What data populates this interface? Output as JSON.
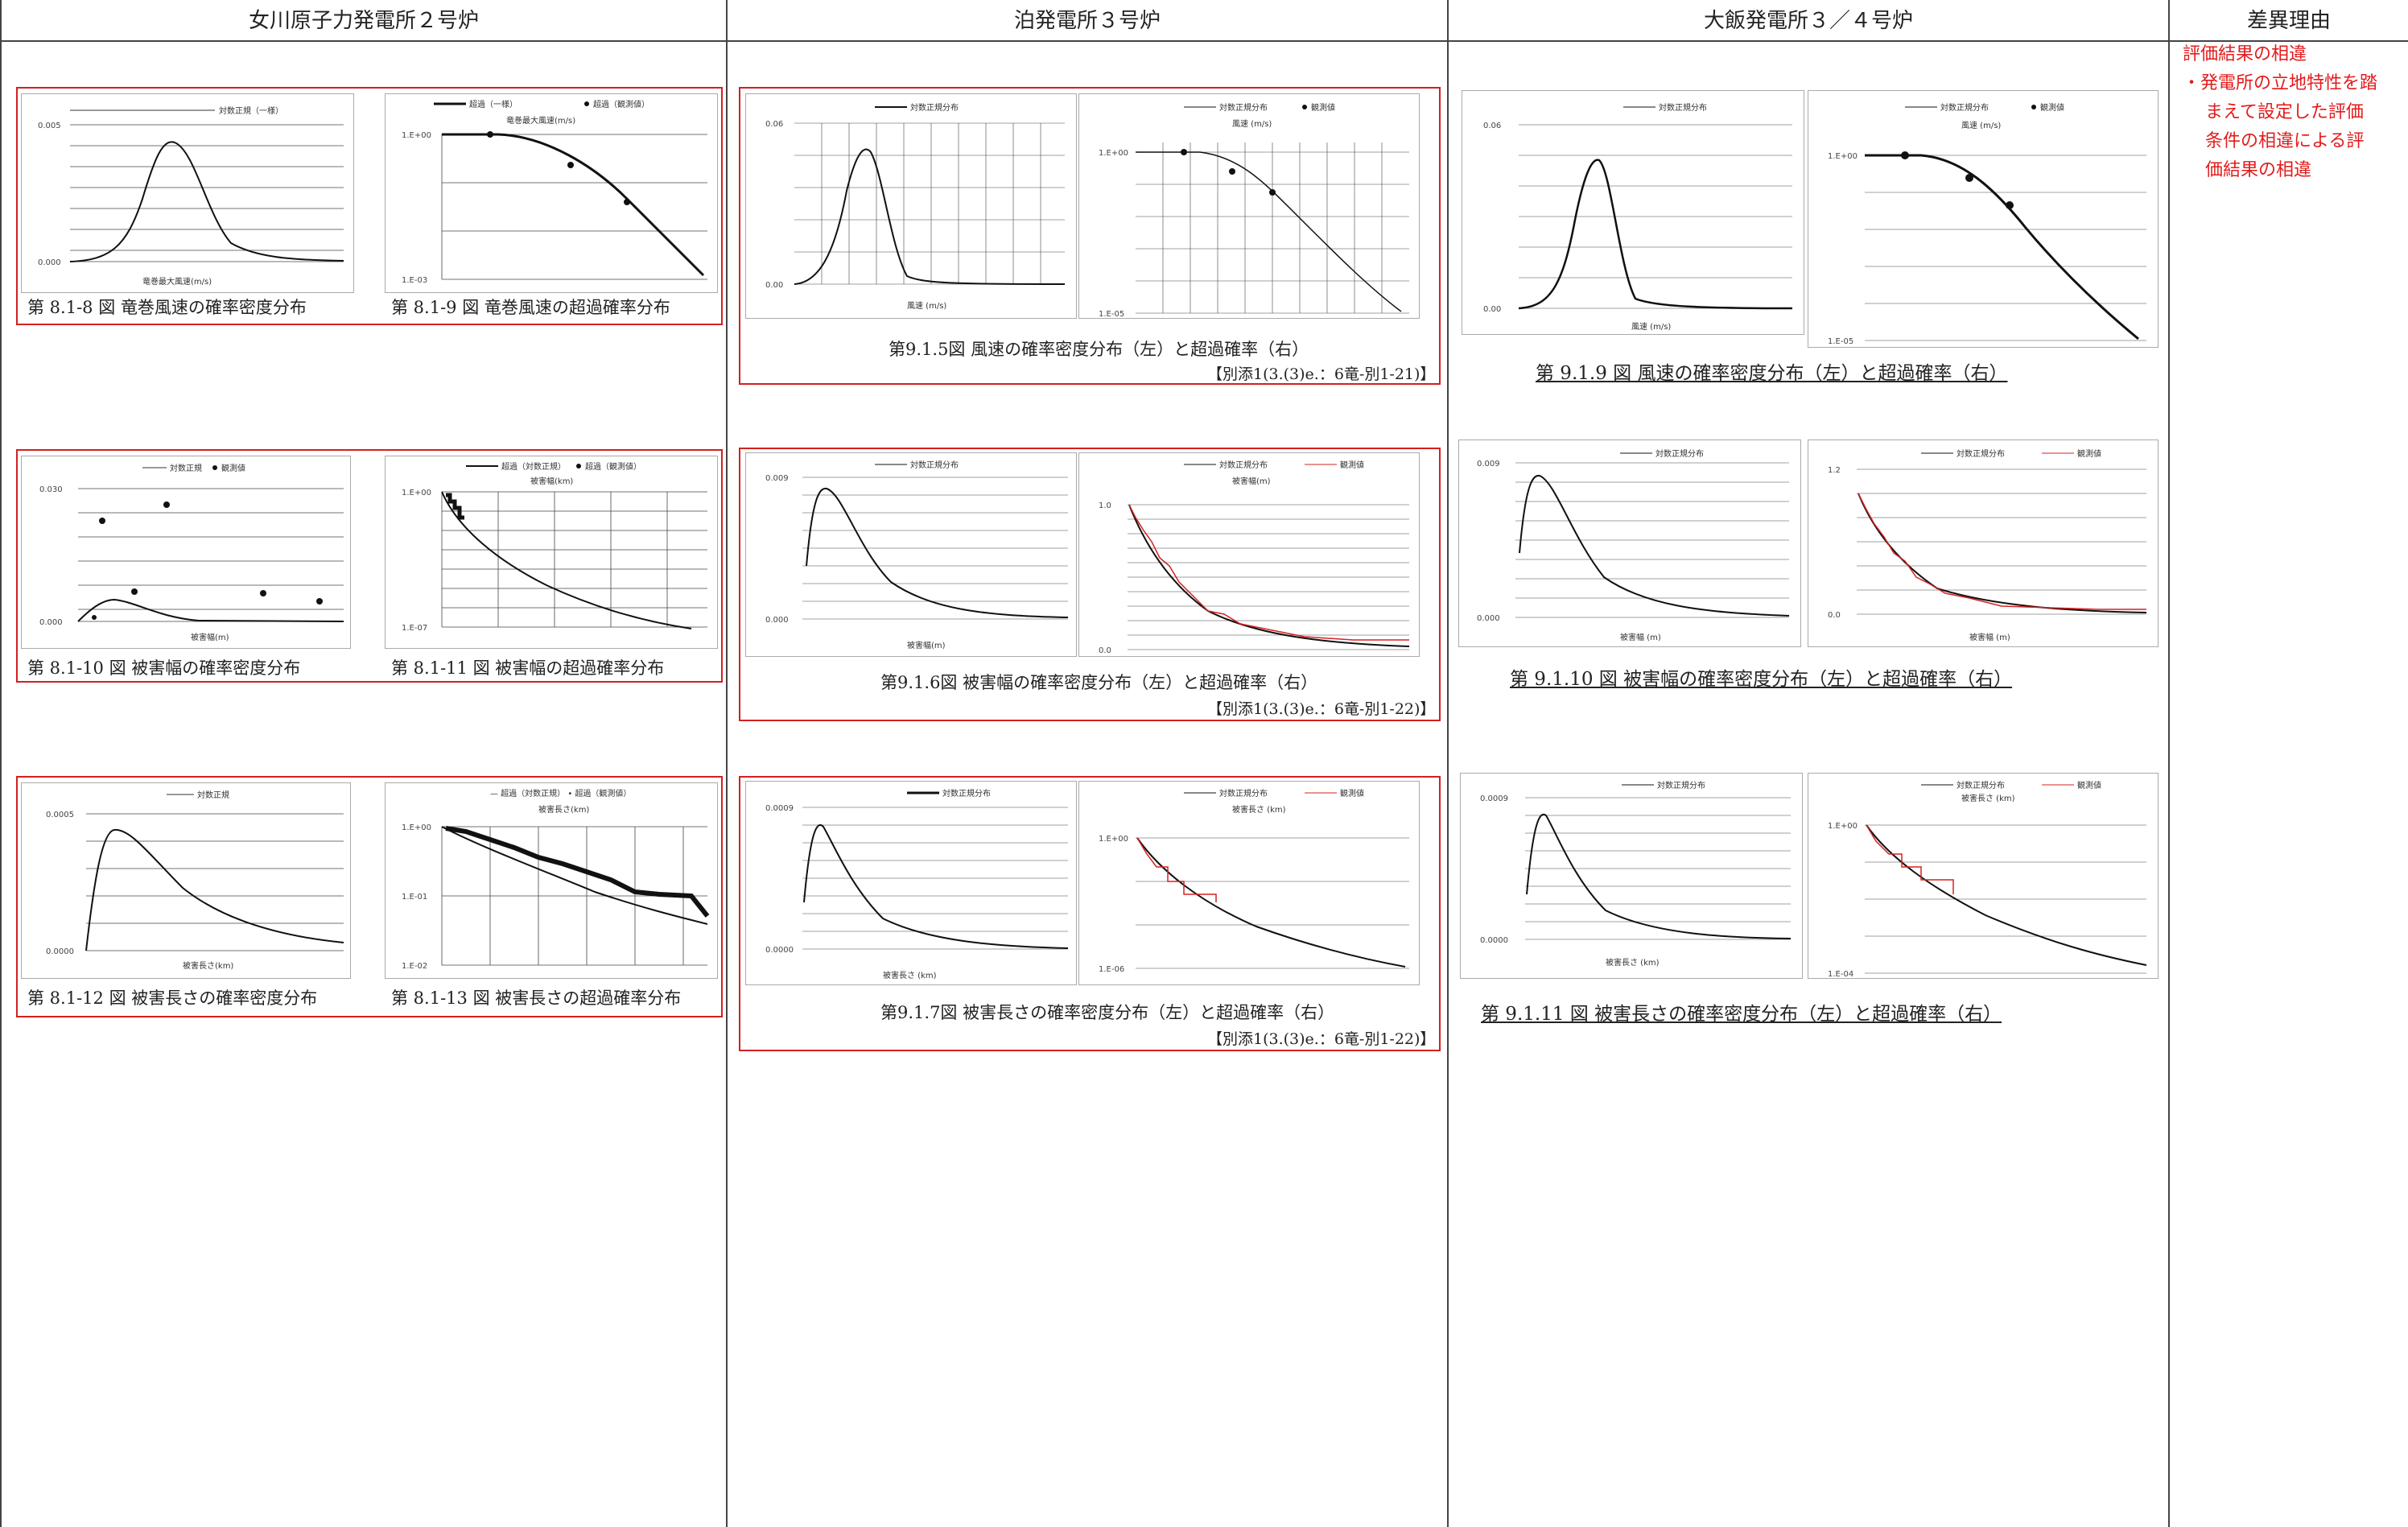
{
  "headers": {
    "onagawa": "女川原子力発電所２号炉",
    "tomari": "泊発電所３号炉",
    "ohi": "大飯発電所３／４号炉",
    "reason": "差異理由"
  },
  "onagawa": {
    "caps": [
      "第 8.1-8 図  竜巻風速の確率密度分布",
      "第 8.1-9 図  竜巻風速の超過確率分布",
      "第 8.1-10 図  被害幅の確率密度分布",
      "第 8.1-11 図  被害幅の超過確率分布",
      "第 8.1-12 図  被害長さの確率密度分布",
      "第 8.1-13 図  被害長さの超過確率分布"
    ],
    "legends": [
      "対数正規（一様）",
      "超過（一様）",
      "超過（観測値）",
      "対数正規",
      "観測値",
      "超過（対数正規）",
      "超過（観測値）",
      "対数正規"
    ],
    "axis": [
      "竜巻最大風速(m/s)",
      "竜巻最大風速(m/s)",
      "被害幅(m)",
      "被害幅(km)",
      "被害長さ(km)",
      "被害長さ(km)"
    ]
  },
  "tomari": {
    "caps": [
      "第9.1.5図   風速の確率密度分布（左）と超過確率（右）",
      "第9.1.6図   被害幅の確率密度分布（左）と超過確率（右）",
      "第9.1.7図   被害長さの確率密度分布（左）と超過確率（右）"
    ],
    "refs": [
      "【別添1(3.(3)e.：6竜-別1-21)】",
      "【別添1(3.(3)e.：6竜-別1-22)】",
      "【別添1(3.(3)e.：6竜-別1-22)】"
    ],
    "legends": [
      "対数正規分布",
      "観測値"
    ],
    "axis": [
      "風速 (m/s)",
      "風速 (m/s)",
      "被害幅(m)",
      "被害幅(m)",
      "被害長さ (km)",
      "被害長さ (km)"
    ]
  },
  "ohi": {
    "caps": [
      "第 9.1.9 図   風速の確率密度分布（左）と超過確率（右）",
      "第 9.1.10 図   被害幅の確率密度分布（左）と超過確率（右）",
      "第 9.1.11 図   被害長さの確率密度分布（左）と超過確率（右）"
    ],
    "legends": [
      "対数正規分布",
      "観測値"
    ],
    "axis": [
      "風速 (m/s)",
      "風速 (m/s)",
      "被害幅 (m)",
      "被害幅 (m)",
      "被害長さ (km)",
      "被害長さ (km)"
    ]
  },
  "reason": {
    "lines": [
      "評価結果の相違",
      "・発電所の立地特性を踏",
      "まえて設定した評価",
      "条件の相違による評",
      "価結果の相違"
    ]
  },
  "colors": {
    "frame": "#d32020",
    "reason": "#e21c1c",
    "curve": "#111111",
    "observed": "#d62020"
  }
}
